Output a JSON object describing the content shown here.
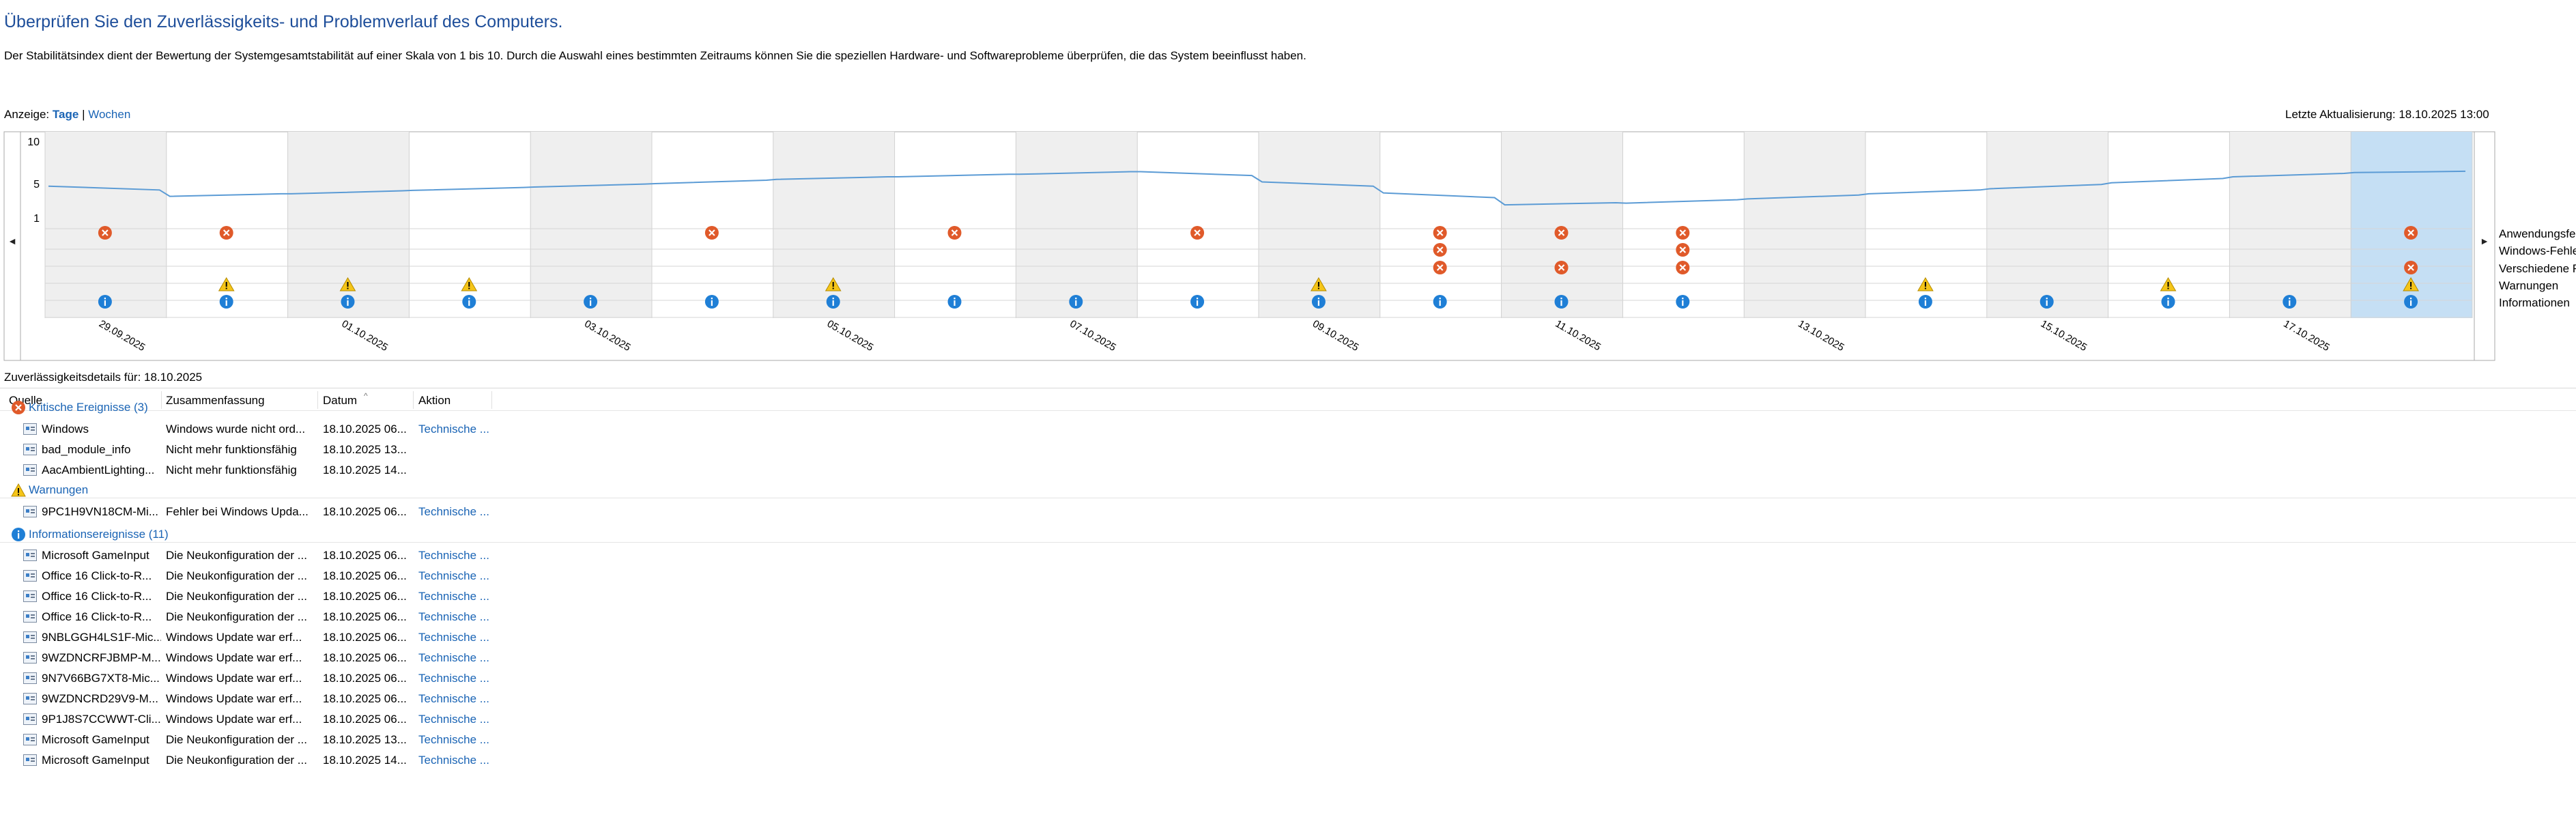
{
  "header": {
    "title": "Überprüfen Sie den Zuverlässigkeits- und Problemverlauf des Computers.",
    "description": "Der Stabilitätsindex dient der Bewertung der Systemgesamtstabilität auf einer Skala von 1 bis 10. Durch die Auswahl eines bestimmten Zeitraums können Sie die speziellen Hardware- und Softwareprobleme überprüfen, die das System beeinflusst haben.",
    "view_label": "Anzeige:",
    "view_days": "Tage",
    "view_sep": "|",
    "view_weeks": "Wochen",
    "last_update": "Letzte Aktualisierung: 18.10.2025 13:00"
  },
  "chart_data": {
    "type": "line",
    "y_ticks": [
      "10",
      "5",
      "1"
    ],
    "ylim": [
      1,
      10
    ],
    "selected_day": "18.10.2025",
    "dates": [
      "29.09.2025",
      "30.09.2025",
      "01.10.2025",
      "02.10.2025",
      "03.10.2025",
      "04.10.2025",
      "05.10.2025",
      "06.10.2025",
      "07.10.2025",
      "08.10.2025",
      "09.10.2025",
      "10.10.2025",
      "11.10.2025",
      "12.10.2025",
      "13.10.2025",
      "14.10.2025",
      "15.10.2025",
      "16.10.2025",
      "17.10.2025",
      "18.10.2025"
    ],
    "date_labels": [
      "29.09.2025",
      "",
      "01.10.2025",
      "",
      "03.10.2025",
      "",
      "05.10.2025",
      "",
      "07.10.2025",
      "",
      "09.10.2025",
      "",
      "11.10.2025",
      "",
      "13.10.2025",
      "",
      "15.10.2025",
      "",
      "17.10.2025",
      ""
    ],
    "stability_index": [
      4.8,
      3.6,
      3.9,
      4.3,
      4.7,
      5.1,
      5.6,
      5.9,
      6.2,
      6.5,
      5.3,
      4.0,
      2.6,
      2.8,
      3.3,
      3.9,
      4.5,
      5.2,
      5.9,
      6.4
    ],
    "event_rows": [
      "Anwendungsfehler",
      "Windows-Fehler",
      "Verschiedene Fehler",
      "Warnungen",
      "Informationen"
    ],
    "events": {
      "Anwendungsfehler": [
        1,
        1,
        0,
        0,
        0,
        1,
        0,
        1,
        0,
        1,
        0,
        1,
        1,
        1,
        0,
        0,
        0,
        0,
        0,
        1
      ],
      "Windows-Fehler": [
        0,
        0,
        0,
        0,
        0,
        0,
        0,
        0,
        0,
        0,
        0,
        1,
        0,
        1,
        0,
        0,
        0,
        0,
        0,
        0
      ],
      "Verschiedene Fehler": [
        0,
        0,
        0,
        0,
        0,
        0,
        0,
        0,
        0,
        0,
        0,
        1,
        1,
        1,
        0,
        0,
        0,
        0,
        0,
        1
      ],
      "Warnungen": [
        0,
        1,
        1,
        1,
        0,
        0,
        1,
        0,
        0,
        0,
        1,
        0,
        0,
        0,
        0,
        1,
        0,
        1,
        0,
        1
      ],
      "Informationen": [
        1,
        1,
        1,
        1,
        1,
        1,
        1,
        1,
        1,
        1,
        1,
        1,
        1,
        1,
        0,
        1,
        1,
        1,
        1,
        1
      ]
    },
    "colors": {
      "line": "#5b9bd5",
      "selected": "#c5dff4",
      "shade": "#efefef",
      "error": "#e05a2a",
      "warning": "#f5c518",
      "info": "#1f7fd6"
    },
    "nav_left": "◄",
    "nav_right": "►"
  },
  "details": {
    "label": "Zuverlässigkeitsdetails für: 18.10.2025",
    "columns": [
      "Quelle",
      "Zusammenfassung",
      "Datum",
      "Aktion"
    ],
    "groups": [
      {
        "name": "Kritische Ereignisse (3)",
        "icon": "error-icon",
        "rows": [
          {
            "source": "Windows",
            "summary": "Windows wurde nicht ord...",
            "date": "18.10.2025 06...",
            "action": "Technische ..."
          },
          {
            "source": "bad_module_info",
            "summary": "Nicht mehr funktionsfähig",
            "date": "18.10.2025 13...",
            "action": ""
          },
          {
            "source": "AacAmbientLighting...",
            "summary": "Nicht mehr funktionsfähig",
            "date": "18.10.2025 14...",
            "action": ""
          }
        ]
      },
      {
        "name": "Warnungen",
        "icon": "warning-icon",
        "rows": [
          {
            "source": "9PC1H9VN18CM-Mi...",
            "summary": "Fehler bei Windows Upda...",
            "date": "18.10.2025 06...",
            "action": "Technische ..."
          }
        ]
      },
      {
        "name": "Informationsereignisse (11)",
        "icon": "info-icon",
        "rows": [
          {
            "source": "Microsoft GameInput",
            "summary": "Die Neukonfiguration der ...",
            "date": "18.10.2025 06...",
            "action": "Technische ..."
          },
          {
            "source": "Office 16 Click-to-R...",
            "summary": "Die Neukonfiguration der ...",
            "date": "18.10.2025 06...",
            "action": "Technische ..."
          },
          {
            "source": "Office 16 Click-to-R...",
            "summary": "Die Neukonfiguration der ...",
            "date": "18.10.2025 06...",
            "action": "Technische ..."
          },
          {
            "source": "Office 16 Click-to-R...",
            "summary": "Die Neukonfiguration der ...",
            "date": "18.10.2025 06...",
            "action": "Technische ..."
          },
          {
            "source": "9NBLGGH4LS1F-Mic...",
            "summary": "Windows Update war erf...",
            "date": "18.10.2025 06...",
            "action": "Technische ..."
          },
          {
            "source": "9WZDNCRFJBMP-M...",
            "summary": "Windows Update war erf...",
            "date": "18.10.2025 06...",
            "action": "Technische ..."
          },
          {
            "source": "9N7V66BG7XT8-Mic...",
            "summary": "Windows Update war erf...",
            "date": "18.10.2025 06...",
            "action": "Technische ..."
          },
          {
            "source": "9WZDNCRD29V9-M...",
            "summary": "Windows Update war erf...",
            "date": "18.10.2025 06...",
            "action": "Technische ..."
          },
          {
            "source": "9P1J8S7CCWWT-Cli...",
            "summary": "Windows Update war erf...",
            "date": "18.10.2025 06...",
            "action": "Technische ..."
          },
          {
            "source": "Microsoft GameInput",
            "summary": "Die Neukonfiguration der ...",
            "date": "18.10.2025 13...",
            "action": "Technische ..."
          },
          {
            "source": "Microsoft GameInput",
            "summary": "Die Neukonfiguration der ...",
            "date": "18.10.2025 14...",
            "action": "Technische ..."
          }
        ]
      }
    ]
  }
}
